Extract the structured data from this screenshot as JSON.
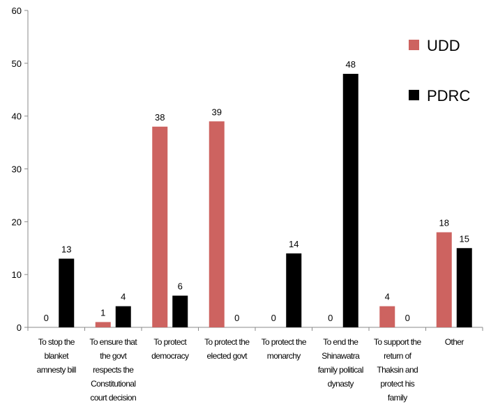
{
  "chart_data": {
    "type": "bar",
    "title": "",
    "xlabel": "",
    "ylabel": "",
    "ylim": [
      0,
      60
    ],
    "yticks": [
      0,
      10,
      20,
      30,
      40,
      50,
      60
    ],
    "grid": false,
    "legend": "top-right",
    "categories": [
      [
        "To stop the",
        "blanket",
        "amnesty bill"
      ],
      [
        "To ensure that",
        "the govt",
        "respects the",
        "Constitutional",
        "court decision"
      ],
      [
        "To protect",
        "democracy"
      ],
      [
        "To protect the",
        "elected govt"
      ],
      [
        "To protect the",
        "monarchy"
      ],
      [
        "To end the",
        "Shinawatra",
        "family political",
        "dynasty"
      ],
      [
        "To support the",
        "return of",
        "Thaksin and",
        "protect his",
        "family"
      ],
      [
        "Other"
      ]
    ],
    "series": [
      {
        "name": "UDD",
        "color": "#cd6360",
        "values": [
          0,
          1,
          38,
          39,
          0,
          0,
          4,
          18
        ]
      },
      {
        "name": "PDRC",
        "color": "#000000",
        "values": [
          13,
          4,
          6,
          0,
          14,
          48,
          0,
          15
        ]
      }
    ]
  }
}
